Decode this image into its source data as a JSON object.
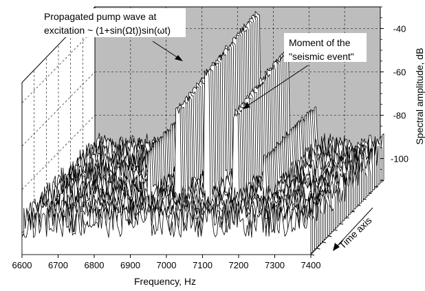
{
  "chart_data": {
    "type": "waterfall",
    "projection": "3d",
    "x_axis": {
      "label": "Frequency, Hz",
      "range": [
        6600,
        7400
      ],
      "ticks": [
        "6600",
        "6700",
        "6800",
        "6900",
        "7000",
        "7100",
        "7200",
        "7300",
        "7400"
      ]
    },
    "z_axis": {
      "label": "Spectral amplitude, dB",
      "range": [
        -110,
        -30
      ],
      "ticks": [
        "-40",
        "-60",
        "-80",
        "-100"
      ]
    },
    "y_axis": {
      "label": "Time axis",
      "direction": "toward-viewer"
    },
    "wall_color": "#bdbdbd",
    "grid": true,
    "n_traces": 40,
    "noise_floor_db": -98,
    "pump_wave": {
      "carrier_hz": 7050,
      "sideband_offset_hz": 80,
      "carrier_peak_db": -33,
      "sideband_peak_db": -50,
      "present_in_traces": "first 28 (back), disappears after the seismic event"
    },
    "annotations": [
      {
        "id": "pump",
        "lines": [
          "Propagated pump wave at",
          "excitation ~ (1+sin(Ωt))sin(ωt)"
        ]
      },
      {
        "id": "event",
        "lines": [
          "Moment of the",
          "\"seismic event\""
        ]
      }
    ]
  }
}
